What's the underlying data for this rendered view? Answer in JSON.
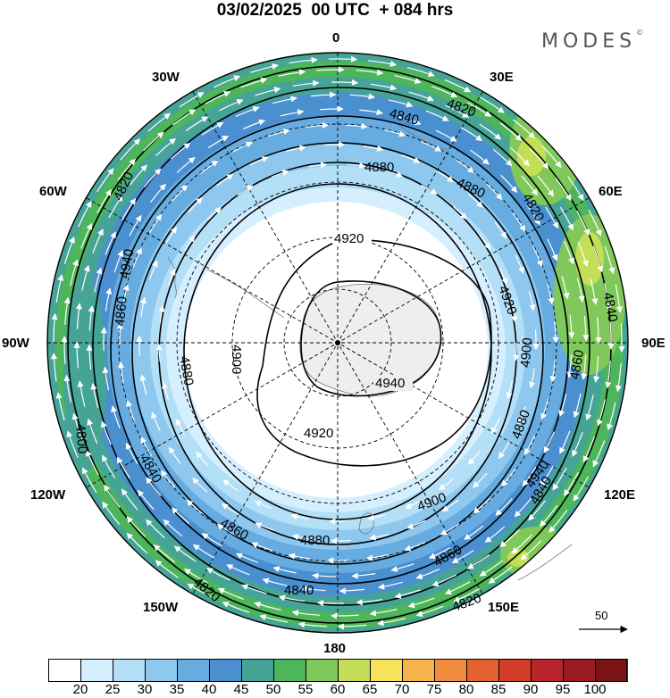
{
  "title": "03/02/2025  00 UTC  + 084 hrs",
  "brand": "MODES",
  "brand_mark": "©",
  "longitude_labels": {
    "n0": "0",
    "n30e": "30E",
    "n60e": "60E",
    "e90": "90E",
    "n120e": "120E",
    "n150e": "150E",
    "s180": "180",
    "n150w": "150W",
    "n120w": "120W",
    "w90": "90W",
    "n60w": "60W",
    "n30w": "30W"
  },
  "contours": [
    {
      "label": "4940",
      "color": "#000"
    },
    {
      "label": "4920",
      "color": "#000"
    },
    {
      "label": "4900",
      "color": "#000"
    },
    {
      "label": "4880",
      "color": "#000"
    },
    {
      "label": "4860",
      "color": "#000"
    },
    {
      "label": "4840",
      "color": "#000"
    },
    {
      "label": "4820",
      "color": "#000"
    },
    {
      "label": "4800",
      "color": "#000"
    }
  ],
  "reference_vector": "50",
  "colorbar": {
    "ticks": [
      "20",
      "25",
      "30",
      "35",
      "40",
      "45",
      "50",
      "55",
      "60",
      "65",
      "70",
      "75",
      "80",
      "85",
      "90",
      "95",
      "100"
    ],
    "colors": [
      "#ffffff",
      "#d6efff",
      "#b3dff7",
      "#8ec8ef",
      "#66ace0",
      "#4a8fcf",
      "#46a496",
      "#4db55a",
      "#7fc85a",
      "#c4de58",
      "#f8e25a",
      "#f7b24a",
      "#f08a3c",
      "#e3612e",
      "#d23d28",
      "#b8242a",
      "#9a1c22",
      "#7a1316"
    ]
  }
}
